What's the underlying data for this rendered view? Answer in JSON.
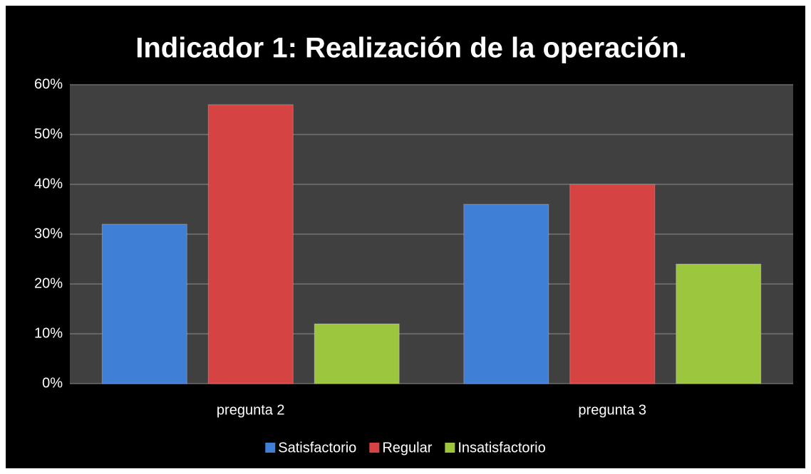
{
  "chart_data": {
    "type": "bar",
    "title": "Indicador 1: Realización de la operación.",
    "categories": [
      "pregunta 2",
      "pregunta 3"
    ],
    "series": [
      {
        "name": "Satisfactorio",
        "color": "#3f7fd6",
        "values": [
          32,
          36
        ]
      },
      {
        "name": "Regular",
        "color": "#d64343",
        "values": [
          56,
          40
        ]
      },
      {
        "name": "Insatisfactorio",
        "color": "#9cc63e",
        "values": [
          12,
          24
        ]
      }
    ],
    "ylim": [
      0,
      60
    ],
    "yticks": [
      {
        "value": 0,
        "label": "0%"
      },
      {
        "value": 10,
        "label": "10%"
      },
      {
        "value": 20,
        "label": "20%"
      },
      {
        "value": 30,
        "label": "30%"
      },
      {
        "value": 40,
        "label": "40%"
      },
      {
        "value": 50,
        "label": "50%"
      },
      {
        "value": 60,
        "label": "60%"
      }
    ],
    "grid": true,
    "legend": "bottom"
  }
}
